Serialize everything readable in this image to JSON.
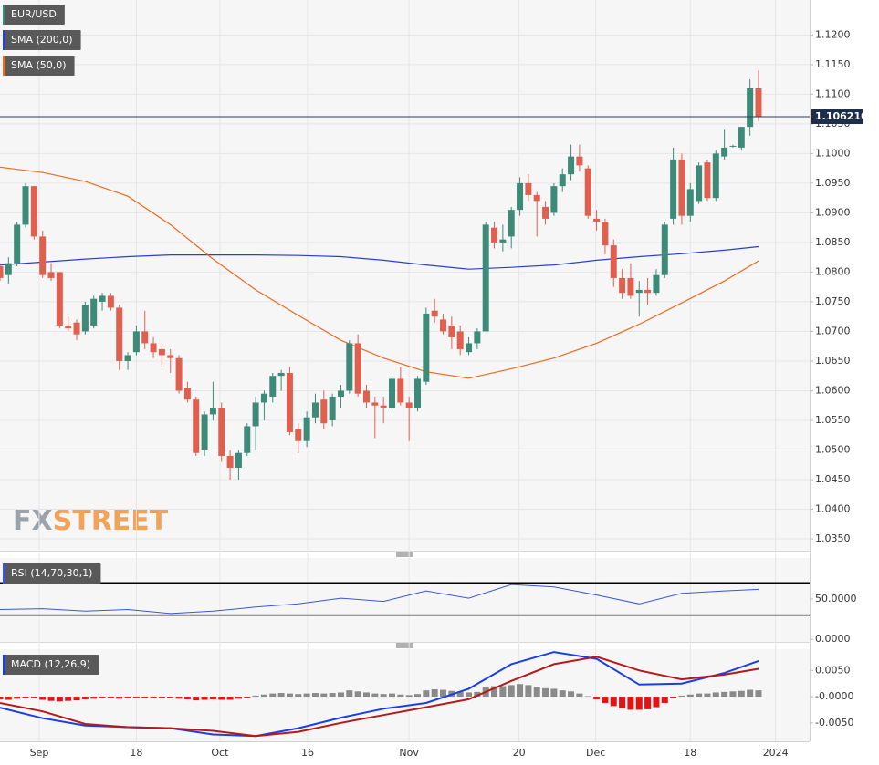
{
  "chart_data": [
    {
      "type": "candlestick",
      "name": "EUR/USD",
      "watermark": [
        "FX",
        "STREET"
      ],
      "up_color": "#3d8a78",
      "down_color": "#e0604f",
      "open": [
        1.081,
        1.0795,
        1.0815,
        1.088,
        1.0945,
        1.086,
        1.08,
        1.08,
        1.071,
        1.0715,
        1.07,
        1.071,
        1.075,
        1.076,
        1.074,
        1.065,
        1.0665,
        1.07,
        1.068,
        1.067,
        1.066,
        1.0655,
        1.0605,
        1.0585,
        1.05,
        1.056,
        1.057,
        1.049,
        1.047,
        1.0495,
        1.054,
        1.058,
        1.059,
        1.0625,
        1.063,
        1.0535,
        1.0515,
        1.0555,
        1.0585,
        1.055,
        1.059,
        1.06,
        1.068,
        1.06,
        1.058,
        1.0575,
        1.057,
        1.062,
        1.058,
        1.057,
        1.0615,
        1.0735,
        1.072,
        1.071,
        1.07,
        1.0665,
        1.068,
        1.07,
        1.0875,
        1.085,
        1.086,
        1.0905,
        1.095,
        1.093,
        1.091,
        1.09,
        1.0945,
        1.0965,
        1.0995,
        1.0975,
        1.089,
        1.0885,
        1.0845,
        1.079,
        1.079,
        1.0765,
        1.077,
        1.0765,
        1.0795,
        1.089,
        1.099,
        1.0895,
        1.092,
        1.0985,
        1.0925,
        1.0995,
        1.1012,
        1.101,
        1.1045,
        1.111
      ],
      "high": [
        1.0815,
        1.0825,
        1.0885,
        1.095,
        1.0945,
        1.087,
        1.0815,
        1.08,
        1.0725,
        1.072,
        1.075,
        1.076,
        1.0765,
        1.0765,
        1.0745,
        1.0665,
        1.071,
        1.0735,
        1.069,
        1.0675,
        1.067,
        1.066,
        1.0615,
        1.059,
        1.0565,
        1.0615,
        1.058,
        1.05,
        1.05,
        1.0545,
        1.059,
        1.06,
        1.063,
        1.0635,
        1.064,
        1.0545,
        1.0565,
        1.0595,
        1.06,
        1.0595,
        1.061,
        1.0685,
        1.0695,
        1.061,
        1.059,
        1.059,
        1.0625,
        1.064,
        1.059,
        1.0625,
        1.074,
        1.0755,
        1.073,
        1.0725,
        1.071,
        1.069,
        1.0705,
        1.0885,
        1.0885,
        1.088,
        1.091,
        1.096,
        1.0965,
        1.0935,
        1.092,
        1.095,
        1.0975,
        1.1015,
        1.1015,
        1.098,
        1.0905,
        1.089,
        1.0855,
        1.0805,
        1.0815,
        1.0785,
        1.079,
        1.0805,
        1.0885,
        1.101,
        1.1,
        1.095,
        1.0985,
        1.099,
        1.1005,
        1.104,
        1.1015,
        1.1045,
        1.1125,
        1.114
      ],
      "low": [
        1.0785,
        1.078,
        1.081,
        1.0875,
        1.0855,
        1.079,
        1.0785,
        1.0705,
        1.07,
        1.0685,
        1.0695,
        1.0705,
        1.0735,
        1.0735,
        1.0635,
        1.0635,
        1.066,
        1.067,
        1.0655,
        1.064,
        1.063,
        1.0595,
        1.058,
        1.049,
        1.049,
        1.055,
        1.048,
        1.045,
        1.045,
        1.049,
        1.05,
        1.055,
        1.058,
        1.06,
        1.0525,
        1.0495,
        1.0505,
        1.0545,
        1.0535,
        1.054,
        1.057,
        1.0595,
        1.059,
        1.057,
        1.052,
        1.0545,
        1.0565,
        1.0575,
        1.0515,
        1.0565,
        1.061,
        1.0715,
        1.0695,
        1.067,
        1.066,
        1.066,
        1.067,
        1.07,
        1.084,
        1.0835,
        1.084,
        1.0895,
        1.092,
        1.086,
        1.088,
        1.0895,
        1.0935,
        1.0955,
        1.097,
        1.089,
        1.087,
        1.083,
        1.0775,
        1.0755,
        1.0755,
        1.0725,
        1.0745,
        1.076,
        1.079,
        1.088,
        1.088,
        1.0885,
        1.0915,
        1.092,
        1.092,
        1.099,
        1.101,
        1.1005,
        1.103,
        1.1055
      ],
      "close": [
        1.079,
        1.0815,
        1.088,
        1.0945,
        1.086,
        1.0795,
        1.079,
        1.071,
        1.0705,
        1.0695,
        1.0745,
        1.0755,
        1.076,
        1.074,
        1.065,
        1.066,
        1.07,
        1.068,
        1.0665,
        1.066,
        1.0655,
        1.06,
        1.0585,
        1.0495,
        1.056,
        1.057,
        1.049,
        1.047,
        1.0495,
        1.054,
        1.058,
        1.0595,
        1.0625,
        1.063,
        1.053,
        1.0515,
        1.0555,
        1.058,
        1.0545,
        1.059,
        1.06,
        1.068,
        1.0595,
        1.058,
        1.0575,
        1.057,
        1.062,
        1.058,
        1.057,
        1.062,
        1.073,
        1.0725,
        1.07,
        1.069,
        1.067,
        1.068,
        1.07,
        1.088,
        1.085,
        1.0855,
        1.0905,
        1.095,
        1.093,
        1.092,
        1.089,
        1.0945,
        1.0965,
        1.0995,
        1.098,
        1.0895,
        1.0885,
        1.0845,
        1.079,
        1.0765,
        1.076,
        1.077,
        1.0765,
        1.0795,
        1.088,
        1.099,
        1.0895,
        1.094,
        1.098,
        1.0925,
        1.1,
        1.101,
        1.1013,
        1.1045,
        1.111,
        1.10621
      ],
      "last": {
        "value": 1.10621,
        "label": "1.106210"
      },
      "series": [
        {
          "name": "SMA (200,0)",
          "color": "#2a3fd0",
          "x": [
            0,
            5,
            10,
            15,
            20,
            25,
            30,
            35,
            40,
            45,
            50,
            55,
            60,
            65,
            70,
            75,
            80,
            85,
            89
          ],
          "values": [
            1.0812,
            1.0817,
            1.0822,
            1.0826,
            1.0829,
            1.0829,
            1.0829,
            1.0828,
            1.0826,
            1.082,
            1.0812,
            1.0805,
            1.0808,
            1.0812,
            1.082,
            1.0826,
            1.0831,
            1.0837,
            1.0843
          ]
        },
        {
          "name": "SMA (50,0)",
          "color": "#ee6a1c",
          "x": [
            0,
            5,
            10,
            15,
            20,
            25,
            30,
            35,
            40,
            45,
            50,
            55,
            60,
            65,
            70,
            75,
            80,
            85,
            89
          ],
          "values": [
            1.0977,
            1.0968,
            1.0953,
            1.0928,
            1.088,
            1.0822,
            1.077,
            1.0727,
            1.0685,
            1.0655,
            1.0632,
            1.0621,
            1.0637,
            1.0655,
            1.068,
            1.0712,
            1.0748,
            1.0785,
            1.0819
          ]
        }
      ],
      "xlim": [
        0,
        95
      ],
      "ylim": [
        1.033,
        1.1259
      ],
      "yticks": [
        {
          "value": 1.12,
          "label": "1.1200"
        },
        {
          "value": 1.115,
          "label": "1.1150"
        },
        {
          "value": 1.11,
          "label": "1.1100"
        },
        {
          "value": 1.105,
          "label": "1.1050"
        },
        {
          "value": 1.1,
          "label": "1.1000"
        },
        {
          "value": 1.095,
          "label": "1.0950"
        },
        {
          "value": 1.09,
          "label": "1.0900"
        },
        {
          "value": 1.085,
          "label": "1.0850"
        },
        {
          "value": 1.08,
          "label": "1.0800"
        },
        {
          "value": 1.075,
          "label": "1.0750"
        },
        {
          "value": 1.07,
          "label": "1.0700"
        },
        {
          "value": 1.065,
          "label": "1.0650"
        },
        {
          "value": 1.06,
          "label": "1.0600"
        },
        {
          "value": 1.055,
          "label": "1.0550"
        },
        {
          "value": 1.05,
          "label": "1.0500"
        },
        {
          "value": 1.045,
          "label": "1.0450"
        },
        {
          "value": 1.04,
          "label": "1.0400"
        },
        {
          "value": 1.035,
          "label": "1.0350"
        }
      ],
      "xticks": [
        {
          "value": 4.6,
          "label": "Sep"
        },
        {
          "value": 16,
          "label": "18"
        },
        {
          "value": 25.8,
          "label": "Oct"
        },
        {
          "value": 36.1,
          "label": "16"
        },
        {
          "value": 48,
          "label": "Nov"
        },
        {
          "value": 60.9,
          "label": "20"
        },
        {
          "value": 69.9,
          "label": "Dec"
        },
        {
          "value": 81,
          "label": "18"
        },
        {
          "value": 91,
          "label": "2024"
        }
      ],
      "grid": true
    },
    {
      "type": "line",
      "name": "RSI (14,70,30,1)",
      "levels": [
        70,
        30
      ],
      "series": [
        {
          "color": "#3a55e0",
          "x": [
            0,
            5,
            10,
            15,
            20,
            25,
            30,
            35,
            40,
            45,
            50,
            55,
            60,
            65,
            70,
            75,
            80,
            85,
            89
          ],
          "values": [
            37,
            38,
            35,
            37,
            32,
            35,
            40,
            44,
            51,
            47,
            60,
            51,
            68,
            65,
            55,
            44,
            57,
            60,
            62
          ]
        }
      ],
      "xlim": [
        0,
        95
      ],
      "ylim": [
        -3.14,
        100.86
      ],
      "yticks": [
        {
          "value": 50,
          "label": "50.0000"
        },
        {
          "value": 0,
          "label": "0.0000"
        }
      ]
    },
    {
      "type": "macd",
      "name": "MACD (12,26,9)",
      "histogram": {
        "up_color": "#8a8a8a",
        "down_color": "#e01414",
        "values": [
          -0.0005,
          -0.0006,
          -0.0004,
          -0.0003,
          -0.0003,
          -0.0006,
          -0.0008,
          -0.0009,
          -0.0008,
          -0.0007,
          -0.0005,
          -0.0004,
          -0.0003,
          -0.0003,
          -0.0004,
          -0.0003,
          -0.0002,
          -0.0002,
          -0.0002,
          -0.0002,
          -0.0003,
          -0.0004,
          -0.0005,
          -0.0007,
          -0.0006,
          -0.0005,
          -0.0006,
          -0.0006,
          -0.0004,
          -0.0002,
          0.0002,
          0.0004,
          0.0006,
          0.0007,
          0.0006,
          0.0005,
          0.0006,
          0.0007,
          0.0006,
          0.0007,
          0.0008,
          0.0012,
          0.001,
          0.0008,
          0.0006,
          0.0005,
          0.0006,
          0.0004,
          0.0003,
          0.0005,
          0.0012,
          0.0014,
          0.0013,
          0.0011,
          0.0009,
          0.0008,
          0.0009,
          0.0019,
          0.002,
          0.002,
          0.0022,
          0.0024,
          0.0022,
          0.0019,
          0.0016,
          0.0015,
          0.0012,
          0.001,
          0.0006,
          0.0001,
          -0.0005,
          -0.0012,
          -0.0018,
          -0.0022,
          -0.0025,
          -0.0025,
          -0.0024,
          -0.002,
          -0.0012,
          -0.0003,
          0.0002,
          0.0004,
          0.0006,
          0.0006,
          0.0008,
          0.0009,
          0.001,
          0.0011,
          0.0013,
          0.0012
        ]
      },
      "series": [
        {
          "color": "#1a3ee6",
          "x": [
            0,
            5,
            10,
            15,
            20,
            25,
            30,
            35,
            40,
            45,
            50,
            55,
            60,
            65,
            70,
            75,
            80,
            85,
            89
          ],
          "values": [
            -0.0021,
            -0.0041,
            -0.0055,
            -0.0058,
            -0.006,
            -0.0072,
            -0.0075,
            -0.006,
            -0.004,
            -0.0023,
            -0.0012,
            0.0015,
            0.0062,
            0.0085,
            0.0072,
            0.0023,
            0.0025,
            0.0045,
            0.0068
          ]
        },
        {
          "color": "#b81818",
          "x": [
            0,
            5,
            10,
            15,
            20,
            25,
            30,
            35,
            40,
            45,
            50,
            55,
            60,
            65,
            70,
            75,
            80,
            85,
            89
          ],
          "values": [
            -0.0012,
            -0.0028,
            -0.0052,
            -0.0058,
            -0.006,
            -0.0065,
            -0.0075,
            -0.0067,
            -0.005,
            -0.0035,
            -0.002,
            -0.0005,
            0.003,
            0.0062,
            0.0076,
            0.005,
            0.0033,
            0.0042,
            0.0053
          ]
        }
      ],
      "xlim": [
        0,
        95
      ],
      "ylim": [
        -0.0085,
        0.00904
      ],
      "yticks": [
        {
          "value": 0.005,
          "label": "0.0050"
        },
        {
          "value": 0,
          "label": "-0.0000"
        },
        {
          "value": -0.005,
          "label": "-0.0050"
        }
      ]
    }
  ]
}
